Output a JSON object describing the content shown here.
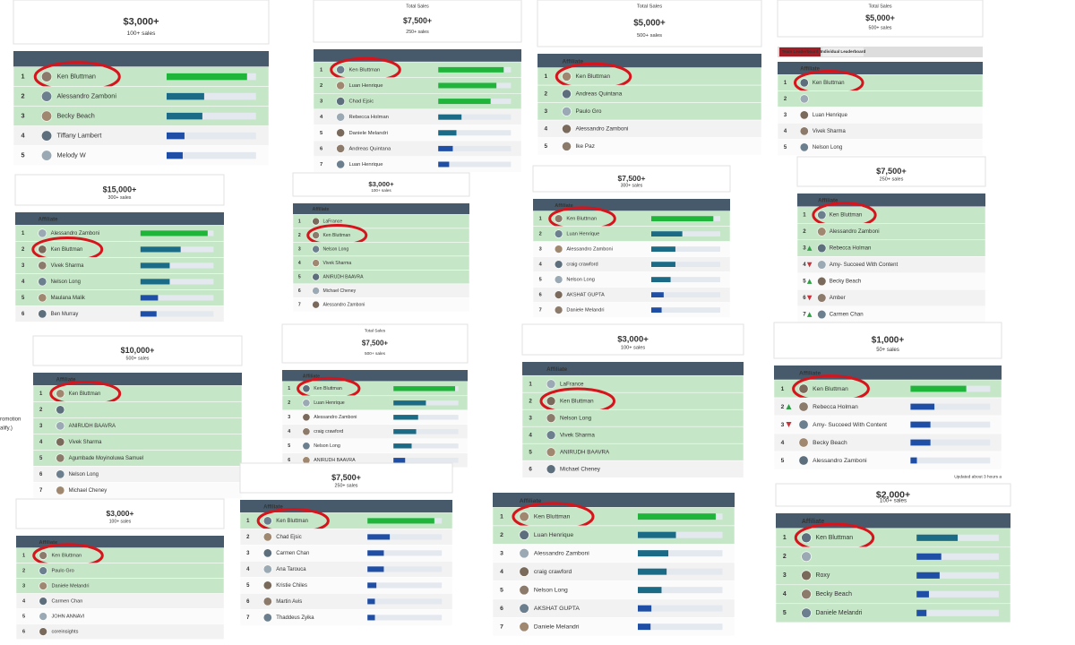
{
  "palette": {
    "g": "#1fb53b",
    "t": "#1b6a86",
    "b": "#1f4ea6"
  },
  "stray": [
    "romotion",
    "alify.)"
  ],
  "panels": [
    {
      "amount": "$3,000+",
      "sales": "100+ sales",
      "rows": [
        {
          "rank": 1,
          "name": "Ken Bluttman",
          "progress": 0.9,
          "c": "g",
          "green": true,
          "circled": true
        },
        {
          "rank": 2,
          "name": "Alessandro Zamboni",
          "progress": 0.42,
          "c": "t",
          "green": true
        },
        {
          "rank": 3,
          "name": "Becky Beach",
          "progress": 0.4,
          "c": "t",
          "green": true
        },
        {
          "rank": 4,
          "name": "Tiffany Lambert",
          "progress": 0.2,
          "c": "b"
        },
        {
          "rank": 5,
          "name": "Melody W",
          "progress": 0.18,
          "c": "b"
        }
      ]
    },
    {
      "total_label": "Total Sales",
      "amount": "$7,500+",
      "sales": "250+ sales",
      "rows": [
        {
          "rank": 1,
          "name": "Ken Bluttman",
          "progress": 0.9,
          "c": "g",
          "green": true,
          "circled": true
        },
        {
          "rank": 2,
          "name": "Luan Henrique",
          "progress": 0.8,
          "c": "g",
          "green": true
        },
        {
          "rank": 3,
          "name": "Chad Ejsic",
          "progress": 0.72,
          "c": "g",
          "green": true
        },
        {
          "rank": 4,
          "name": "Rebecca Holman",
          "progress": 0.32,
          "c": "t"
        },
        {
          "rank": 5,
          "name": "Daniele Melandri",
          "progress": 0.25,
          "c": "t"
        },
        {
          "rank": 6,
          "name": "Andreas Quintana",
          "progress": 0.2,
          "c": "b"
        },
        {
          "rank": 7,
          "name": "Luan Henrique",
          "progress": 0.15,
          "c": "b"
        }
      ]
    },
    {
      "total_label": "Total Sales",
      "amount": "$5,000+",
      "sales": "500+ sales",
      "column": "Affiliate",
      "rows": [
        {
          "rank": 1,
          "name": "Ken Bluttman",
          "green": true,
          "circled": true
        },
        {
          "rank": 2,
          "name": "Andreas Quintana",
          "green": true
        },
        {
          "rank": 3,
          "name": "Paulo Gro",
          "green": true
        },
        {
          "rank": 4,
          "name": "Alessandro Zamboni"
        },
        {
          "rank": 5,
          "name": "Ike Paz"
        }
      ]
    },
    {
      "total_label": "Total Sales",
      "amount": "$5,000+",
      "sales": "500+ sales",
      "tabs": [
        "Team Leaderboard",
        "Individual Leaderboard"
      ],
      "column": "Affiliate",
      "rows": [
        {
          "rank": 1,
          "name": "Ken Bluttman",
          "green": true,
          "circled": true
        },
        {
          "rank": 2,
          "green": true
        },
        {
          "rank": 3,
          "name": "Luan Henrique"
        },
        {
          "rank": 4,
          "name": "Vivek Sharma"
        },
        {
          "rank": 5,
          "name": "Nelson Long"
        }
      ]
    },
    {
      "amount": "$15,000+",
      "sales": "300+ sales",
      "column": "Affiliate",
      "rows": [
        {
          "rank": 1,
          "name": "Alessandro Zamboni",
          "progress": 0.92,
          "c": "g",
          "green": true
        },
        {
          "rank": 2,
          "name": "Ken Bluttman",
          "progress": 0.55,
          "c": "t",
          "green": true,
          "circled": true
        },
        {
          "rank": 3,
          "name": "Vivek Sharma",
          "progress": 0.4,
          "c": "t",
          "green": true
        },
        {
          "rank": 4,
          "name": "Nelson Long",
          "progress": 0.4,
          "c": "t",
          "green": true
        },
        {
          "rank": 5,
          "name": "Maulana Malik",
          "progress": 0.24,
          "c": "b",
          "green": true
        },
        {
          "rank": 6,
          "name": "Ben Murray",
          "progress": 0.22,
          "c": "b"
        }
      ]
    },
    {
      "amount": "$3,000+",
      "sales": "100+ sales",
      "column": "Affiliate",
      "rows": [
        {
          "rank": 1,
          "name": "LaFrance",
          "green": true
        },
        {
          "rank": 2,
          "name": "Ken Bluttman",
          "green": true,
          "circled": true
        },
        {
          "rank": 3,
          "name": "Nelson Long",
          "green": true
        },
        {
          "rank": 4,
          "name": "Vivek Sharma",
          "green": true
        },
        {
          "rank": 5,
          "name": "ANIRUDH BAAVRA",
          "green": true
        },
        {
          "rank": 6,
          "name": "Michael Cheney"
        },
        {
          "rank": 7,
          "name": "Alessandro Zamboni"
        }
      ]
    },
    {
      "amount": "$7,500+",
      "sales": "300+ sales",
      "column": "Affiliate",
      "rows": [
        {
          "rank": 1,
          "name": "Ken Bluttman",
          "progress": 0.9,
          "c": "g",
          "green": true,
          "circled": true
        },
        {
          "rank": 2,
          "name": "Luan Henrique",
          "progress": 0.45,
          "c": "t",
          "green": true
        },
        {
          "rank": 3,
          "name": "Alessandro Zamboni",
          "progress": 0.35,
          "c": "t"
        },
        {
          "rank": 4,
          "name": "craig crawford",
          "progress": 0.35,
          "c": "t"
        },
        {
          "rank": 5,
          "name": "Nelson Long",
          "progress": 0.28,
          "c": "t"
        },
        {
          "rank": 6,
          "name": "AKSHAT GUPTA",
          "progress": 0.18,
          "c": "b"
        },
        {
          "rank": 7,
          "name": "Daniele Melandri",
          "progress": 0.15,
          "c": "b"
        }
      ]
    },
    {
      "amount": "$7,500+",
      "sales": "250+ sales",
      "column": "Affiliate",
      "rows": [
        {
          "rank": 1,
          "name": "Ken Bluttman",
          "green": true,
          "circled": true
        },
        {
          "rank": 2,
          "name": "Alessandro Zamboni",
          "green": true
        },
        {
          "rank": 3,
          "name": "Rebecca Holman",
          "green": true,
          "trend": "up"
        },
        {
          "rank": 4,
          "name": "Amy- Succeed With Content",
          "trend": "down"
        },
        {
          "rank": 5,
          "name": "Becky Beach",
          "trend": "up"
        },
        {
          "rank": 6,
          "name": "Amber",
          "trend": "down"
        },
        {
          "rank": 7,
          "name": "Carmen Chan",
          "trend": "up"
        }
      ]
    },
    {
      "amount": "$10,000+",
      "sales": "500+ sales",
      "column": "Affiliate",
      "rows": [
        {
          "rank": 1,
          "name": "Ken Bluttman",
          "green": true,
          "circled": true
        },
        {
          "rank": 2,
          "green": true
        },
        {
          "rank": 3,
          "name": "ANIRUDH BAAVRA",
          "green": true
        },
        {
          "rank": 4,
          "name": "Vivek Sharma",
          "green": true
        },
        {
          "rank": 5,
          "name": "Agumbade Moyinoluwa Samuel",
          "green": true
        },
        {
          "rank": 6,
          "name": "Nelson Long"
        },
        {
          "rank": 7,
          "name": "Michael Cheney"
        }
      ]
    },
    {
      "total_label": "Total Sales",
      "amount": "$7,500+",
      "sales": "500+ sales",
      "column": "Affiliate",
      "rows": [
        {
          "rank": 1,
          "name": "Ken Bluttman",
          "progress": 0.95,
          "c": "g",
          "green": true,
          "circled": true
        },
        {
          "rank": 2,
          "name": "Luan Henrique",
          "progress": 0.5,
          "c": "t",
          "green": true
        },
        {
          "rank": 3,
          "name": "Alessandro Zamboni",
          "progress": 0.38,
          "c": "t"
        },
        {
          "rank": 4,
          "name": "craig crawford",
          "progress": 0.35,
          "c": "t"
        },
        {
          "rank": 5,
          "name": "Nelson Long",
          "progress": 0.28,
          "c": "t"
        },
        {
          "rank": 6,
          "name": "ANIRUDH BAAVRA",
          "progress": 0.18,
          "c": "b"
        }
      ]
    },
    {
      "amount": "$3,000+",
      "sales": "100+ sales",
      "column": "Affiliate",
      "rows": [
        {
          "rank": 1,
          "name": "LaFrance",
          "green": true
        },
        {
          "rank": 2,
          "name": "Ken Bluttman",
          "green": true,
          "circled": true
        },
        {
          "rank": 3,
          "name": "Nelson Long",
          "green": true
        },
        {
          "rank": 4,
          "name": "Vivek Sharma",
          "green": true
        },
        {
          "rank": 5,
          "name": "ANIRUDH BAAVRA",
          "green": true
        },
        {
          "rank": 6,
          "name": "Michael Cheney"
        }
      ]
    },
    {
      "amount": "$1,000+",
      "sales": "50+ sales",
      "column": "Affiliate",
      "footer": "Updated about 3 hours a",
      "rows": [
        {
          "rank": 1,
          "name": "Ken Bluttman",
          "progress": 0.7,
          "c": "g",
          "green": true,
          "circled": true
        },
        {
          "rank": 2,
          "name": "Rebecca Holman",
          "progress": 0.3,
          "c": "b",
          "trend": "up"
        },
        {
          "rank": 3,
          "name": "Amy- Succeed With Content",
          "progress": 0.25,
          "c": "b",
          "trend": "down"
        },
        {
          "rank": 4,
          "name": "Becky Beach",
          "progress": 0.25,
          "c": "b"
        },
        {
          "rank": 5,
          "name": "Alessandro Zamboni",
          "progress": 0.08,
          "c": "b"
        }
      ]
    },
    {
      "amount": "$3,000+",
      "sales": "100+ sales",
      "column": "Affiliate",
      "rows": [
        {
          "rank": 1,
          "name": "Ken Bluttman",
          "green": true,
          "circled": true
        },
        {
          "rank": 2,
          "name": "Paulo Gro",
          "green": true
        },
        {
          "rank": 3,
          "name": "Daniele Melandri",
          "green": true
        },
        {
          "rank": 4,
          "name": "Carmen Chan"
        },
        {
          "rank": 5,
          "name": "JOHN ANNAVI"
        },
        {
          "rank": 6,
          "name": "coreinsights"
        }
      ]
    },
    {
      "amount": "$7,500+",
      "sales": "250+ sales",
      "column": "Affiliate",
      "rows": [
        {
          "rank": 1,
          "name": "Ken Bluttman",
          "progress": 0.9,
          "c": "g",
          "green": true,
          "circled": true
        },
        {
          "rank": 2,
          "name": "Chad Ejsic",
          "progress": 0.3,
          "c": "b"
        },
        {
          "rank": 3,
          "name": "Carmen Chan",
          "progress": 0.22,
          "c": "b"
        },
        {
          "rank": 4,
          "name": "Ana Tarouca",
          "progress": 0.22,
          "c": "b"
        },
        {
          "rank": 5,
          "name": "Kristie Chiles",
          "progress": 0.12,
          "c": "b"
        },
        {
          "rank": 6,
          "name": "Martin Avis",
          "progress": 0.1,
          "c": "b"
        },
        {
          "rank": 7,
          "name": "Thaddeus Zyika",
          "progress": 0.1,
          "c": "b"
        }
      ]
    },
    {
      "column": "Affiliate",
      "rows": [
        {
          "rank": 1,
          "name": "Ken Bluttman",
          "progress": 0.92,
          "c": "g",
          "green": true,
          "circled": true
        },
        {
          "rank": 2,
          "name": "Luan Henrique",
          "progress": 0.45,
          "c": "t",
          "green": true
        },
        {
          "rank": 3,
          "name": "Alessandro Zamboni",
          "progress": 0.36,
          "c": "t"
        },
        {
          "rank": 4,
          "name": "craig crawford",
          "progress": 0.34,
          "c": "t"
        },
        {
          "rank": 5,
          "name": "Nelson Long",
          "progress": 0.28,
          "c": "t"
        },
        {
          "rank": 6,
          "name": "AKSHAT GUPTA",
          "progress": 0.16,
          "c": "b"
        },
        {
          "rank": 7,
          "name": "Daniele Melandri",
          "progress": 0.15,
          "c": "b"
        }
      ]
    },
    {
      "amount": "$2,000+",
      "sales": "100+ sales",
      "column": "Affiliate",
      "rows": [
        {
          "rank": 1,
          "name": "Ken Bluttman",
          "progress": 0.5,
          "c": "t",
          "green": true,
          "circled": true
        },
        {
          "rank": 2,
          "progress": 0.3,
          "c": "b",
          "green": true
        },
        {
          "rank": 3,
          "name": "Roxy",
          "progress": 0.28,
          "c": "b",
          "green": true
        },
        {
          "rank": 4,
          "name": "Becky Beach",
          "progress": 0.15,
          "c": "b",
          "green": true
        },
        {
          "rank": 5,
          "name": "Daniele Melandri",
          "progress": 0.12,
          "c": "b",
          "green": true
        }
      ]
    }
  ]
}
